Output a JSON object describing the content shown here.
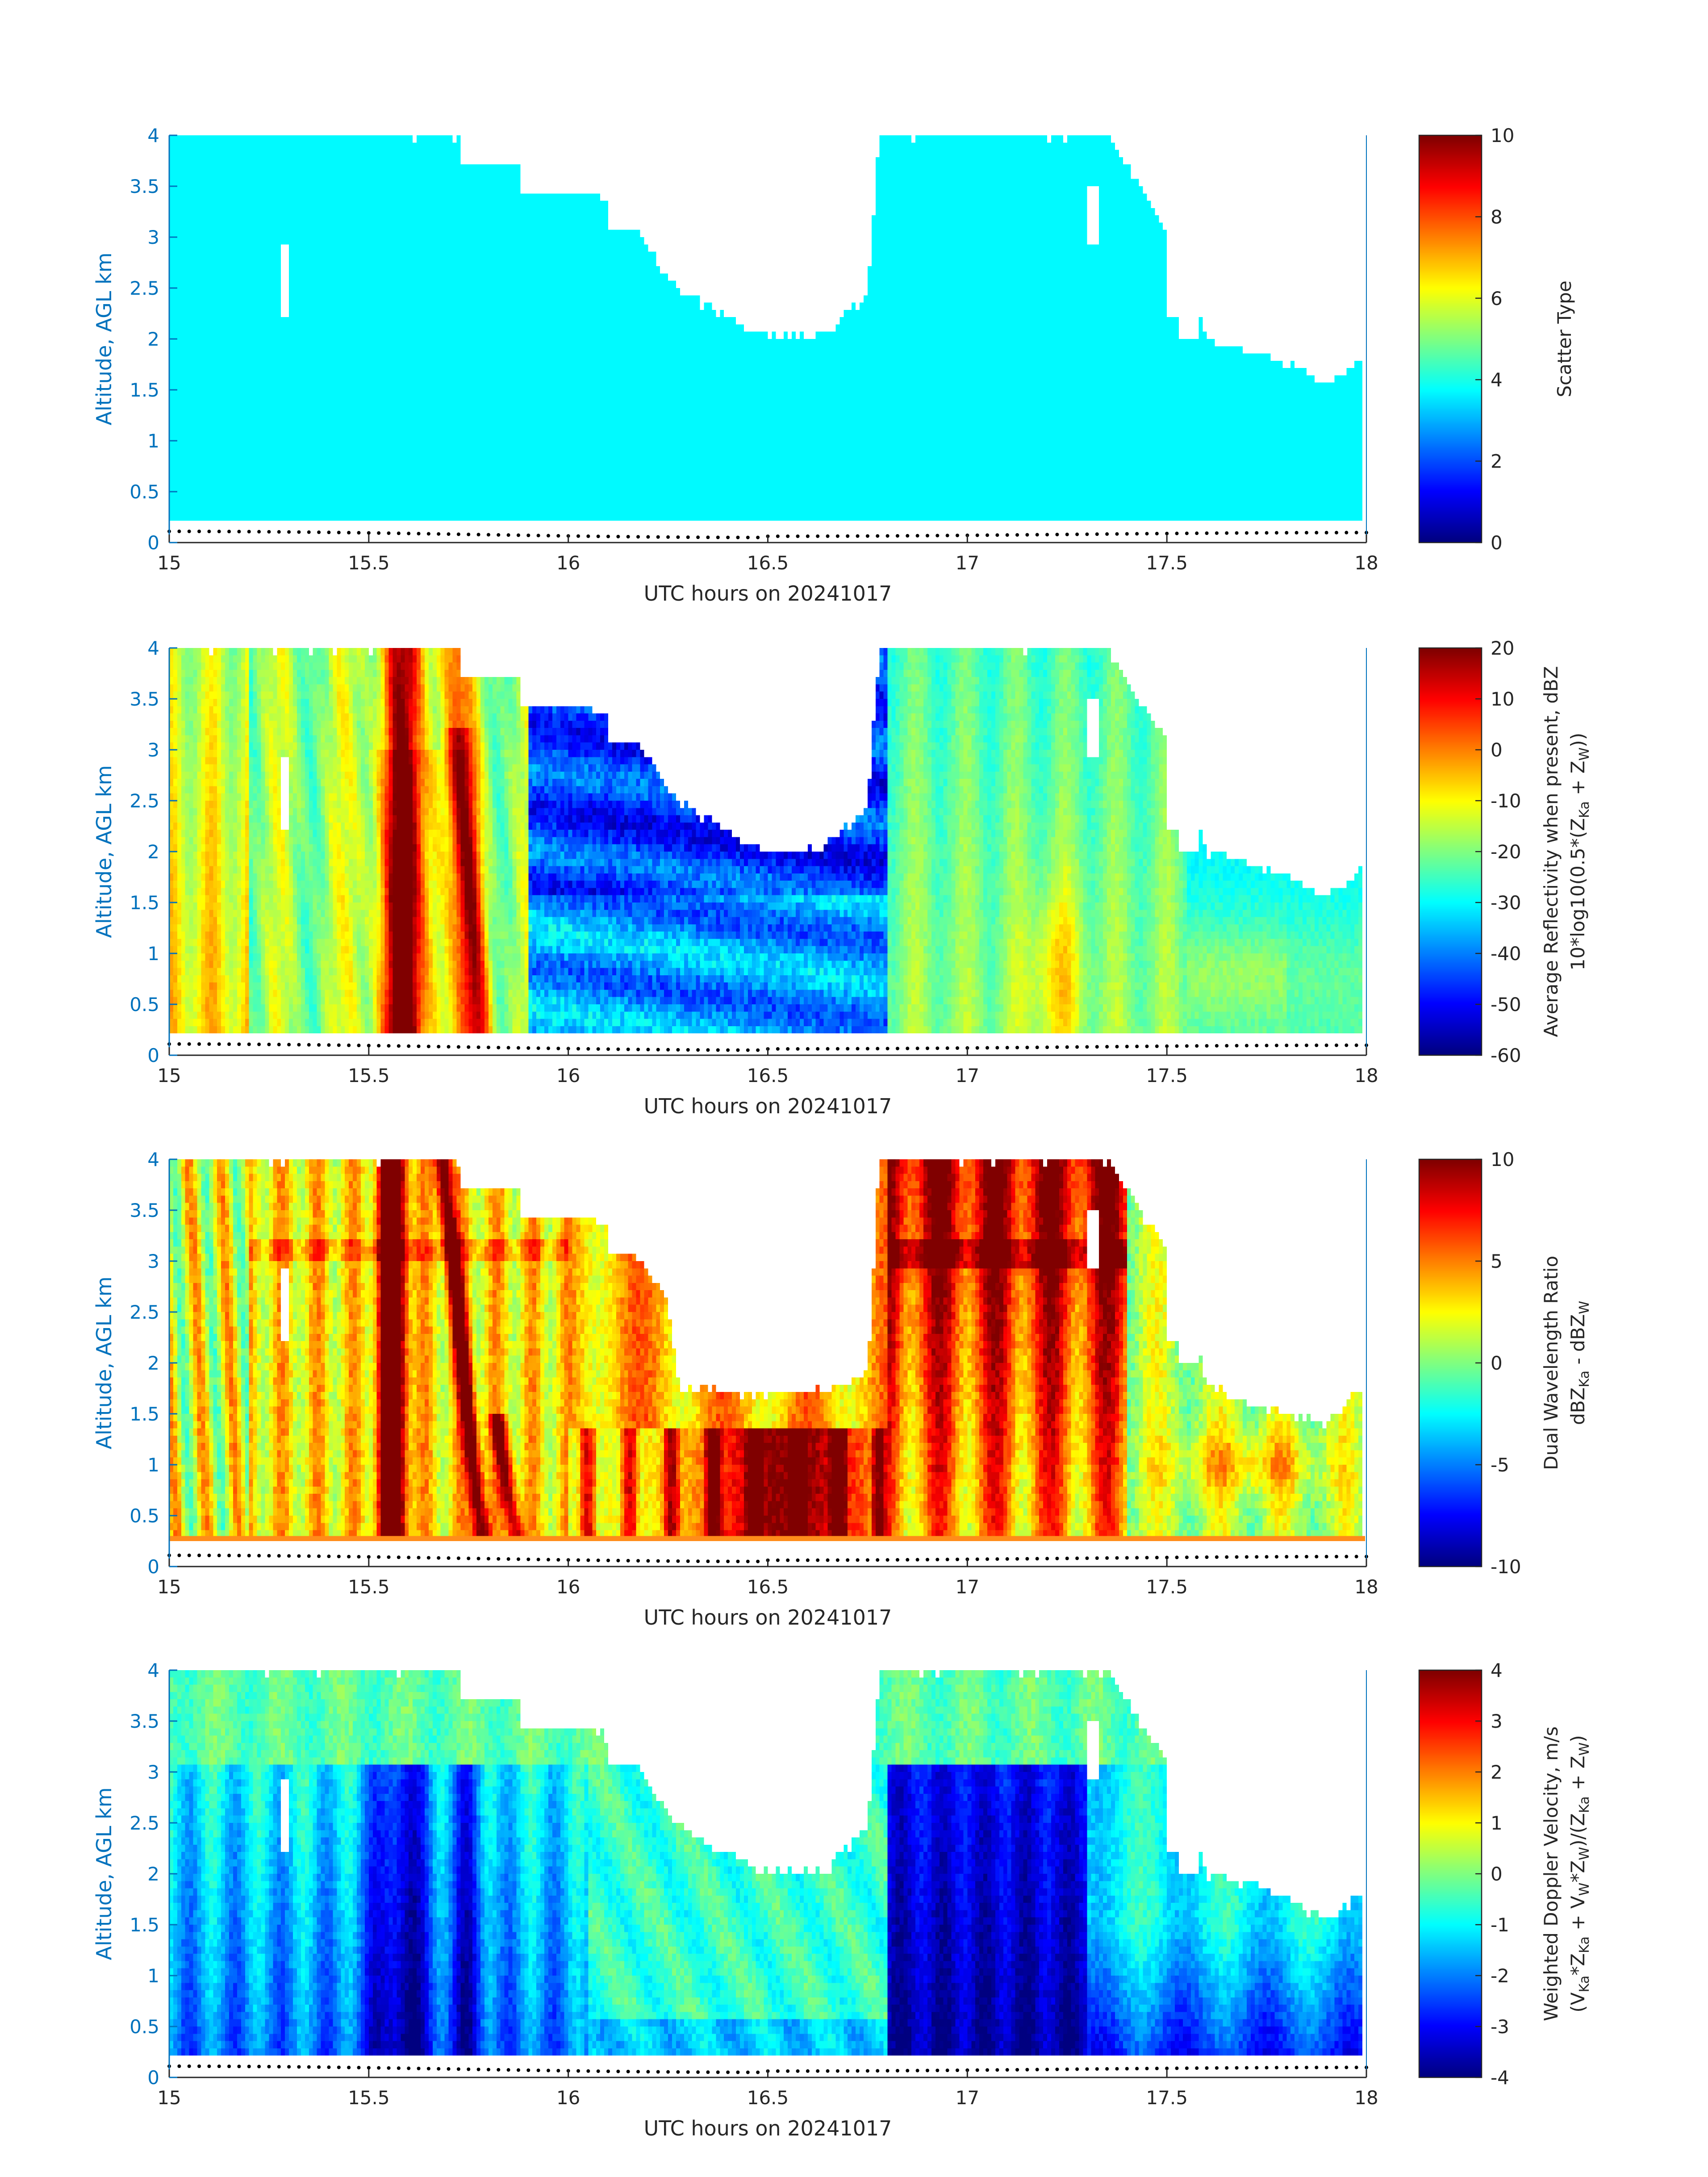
{
  "figure": {
    "xlabel": "UTC hours on 20241017",
    "ylabel": "Altitude, AGL km"
  },
  "chart_data": [
    {
      "type": "heatmap",
      "title": "",
      "xlabel": "UTC hours on 20241017",
      "ylabel": "Altitude, AGL km",
      "xlim": [
        15,
        18
      ],
      "ylim": [
        0,
        4
      ],
      "xticks": [
        15,
        15.5,
        16,
        16.5,
        17,
        17.5,
        18
      ],
      "xtick_labels": [
        "15",
        "15.5",
        "16",
        "16.5",
        "17",
        "17.5",
        "18"
      ],
      "yticks": [
        0,
        0.5,
        1,
        1.5,
        2,
        2.5,
        3,
        3.5,
        4
      ],
      "ytick_labels": [
        "0",
        "0.5",
        "1",
        "1.5",
        "2",
        "2.5",
        "3",
        "3.5",
        "4"
      ],
      "colorbar": {
        "label_lines": [
          "Scatter Type"
        ],
        "range": [
          0,
          10
        ],
        "ticks": [
          0,
          2,
          4,
          6,
          8,
          10
        ],
        "tick_labels": [
          "0",
          "2",
          "4",
          "6",
          "8",
          "10"
        ],
        "colormap": "jet"
      },
      "field": "scatter",
      "data_bottom_km": 0.2,
      "cloud_top_profile": [
        [
          15,
          4
        ],
        [
          15.2,
          4
        ],
        [
          15.5,
          4
        ],
        [
          15.7,
          4
        ],
        [
          15.85,
          3.8
        ],
        [
          15.95,
          3.65
        ],
        [
          16.05,
          3.45
        ],
        [
          16.15,
          3.2
        ],
        [
          16.25,
          2.6
        ],
        [
          16.35,
          2.3
        ],
        [
          16.5,
          2.0
        ],
        [
          16.65,
          2.05
        ],
        [
          16.75,
          2.45
        ],
        [
          16.78,
          4
        ],
        [
          17.35,
          4
        ],
        [
          17.45,
          3.4
        ],
        [
          17.55,
          2.8
        ],
        [
          17.6,
          2.0
        ],
        [
          17.7,
          1.9
        ],
        [
          17.8,
          1.75
        ],
        [
          17.9,
          1.55
        ],
        [
          18.0,
          1.85
        ]
      ],
      "gaps": [
        [
          15.28,
          15.3,
          2.2,
          2.9
        ],
        [
          15.73,
          16.05,
          3.7,
          4.0
        ],
        [
          15.88,
          16.05,
          3.4,
          4.0
        ],
        [
          16.1,
          16.3,
          3.1,
          3.7
        ],
        [
          17.3,
          17.33,
          2.9,
          3.5
        ],
        [
          17.5,
          17.7,
          2.2,
          3.9
        ],
        [
          17.53,
          17.58,
          2.0,
          2.8
        ]
      ]
    },
    {
      "type": "heatmap",
      "title": "",
      "xlabel": "UTC hours on 20241017",
      "ylabel": "Altitude, AGL km",
      "xlim": [
        15,
        18
      ],
      "ylim": [
        0,
        4
      ],
      "xticks": [
        15,
        15.5,
        16,
        16.5,
        17,
        17.5,
        18
      ],
      "xtick_labels": [
        "15",
        "15.5",
        "16",
        "16.5",
        "17",
        "17.5",
        "18"
      ],
      "yticks": [
        0,
        0.5,
        1,
        1.5,
        2,
        2.5,
        3,
        3.5,
        4
      ],
      "ytick_labels": [
        "0",
        "0.5",
        "1",
        "1.5",
        "2",
        "2.5",
        "3",
        "3.5",
        "4"
      ],
      "colorbar": {
        "label_lines": [
          "Average Reflectivity when present, dBZ",
          "10*log10(0.5*(Z_Ka + Z_W))"
        ],
        "range": [
          -60,
          20
        ],
        "ticks": [
          -60,
          -50,
          -40,
          -30,
          -20,
          -10,
          0,
          10,
          20
        ],
        "tick_labels": [
          "-60",
          "-50",
          "-40",
          "-30",
          "-20",
          "-10",
          "0",
          "10",
          "20"
        ],
        "colormap": "jet"
      },
      "field": "reflectivity",
      "data_bottom_km": 0.2,
      "cloud_top_profile": [
        [
          15,
          4
        ],
        [
          15.2,
          4
        ],
        [
          15.5,
          4
        ],
        [
          15.7,
          4
        ],
        [
          15.85,
          3.8
        ],
        [
          15.95,
          3.65
        ],
        [
          16.05,
          3.45
        ],
        [
          16.15,
          3.2
        ],
        [
          16.25,
          2.6
        ],
        [
          16.35,
          2.3
        ],
        [
          16.5,
          2.0
        ],
        [
          16.65,
          2.05
        ],
        [
          16.75,
          2.45
        ],
        [
          16.78,
          4
        ],
        [
          17.35,
          4
        ],
        [
          17.45,
          3.4
        ],
        [
          17.55,
          2.8
        ],
        [
          17.6,
          2.0
        ],
        [
          17.7,
          1.9
        ],
        [
          17.8,
          1.75
        ],
        [
          17.9,
          1.55
        ],
        [
          18.0,
          1.85
        ]
      ],
      "gaps": [
        [
          15.28,
          15.3,
          2.2,
          2.9
        ],
        [
          15.73,
          16.05,
          3.7,
          4.0
        ],
        [
          15.88,
          16.05,
          3.4,
          4.0
        ],
        [
          16.1,
          16.3,
          3.1,
          3.7
        ],
        [
          17.3,
          17.33,
          2.9,
          3.5
        ],
        [
          17.5,
          17.7,
          2.2,
          3.9
        ],
        [
          17.53,
          17.58,
          2.0,
          2.8
        ]
      ]
    },
    {
      "type": "heatmap",
      "title": "",
      "xlabel": "UTC hours on 20241017",
      "ylabel": "Altitude, AGL km",
      "xlim": [
        15,
        18
      ],
      "ylim": [
        0,
        4
      ],
      "xticks": [
        15,
        15.5,
        16,
        16.5,
        17,
        17.5,
        18
      ],
      "xtick_labels": [
        "15",
        "15.5",
        "16",
        "16.5",
        "17",
        "17.5",
        "18"
      ],
      "yticks": [
        0,
        0.5,
        1,
        1.5,
        2,
        2.5,
        3,
        3.5,
        4
      ],
      "ytick_labels": [
        "0",
        "0.5",
        "1",
        "1.5",
        "2",
        "2.5",
        "3",
        "3.5",
        "4"
      ],
      "colorbar": {
        "label_lines": [
          "Dual Wavelength Ratio",
          "dBZ_Ka - dBZ_W"
        ],
        "range": [
          -10,
          10
        ],
        "ticks": [
          -10,
          -5,
          0,
          5,
          10
        ],
        "tick_labels": [
          "-10",
          "-5",
          "0",
          "5",
          "10"
        ],
        "colormap": "jet"
      },
      "field": "dwr",
      "data_bottom_km": 0.27,
      "cloud_top_profile": [
        [
          15,
          4
        ],
        [
          15.2,
          4
        ],
        [
          15.5,
          4
        ],
        [
          15.7,
          4
        ],
        [
          15.85,
          3.8
        ],
        [
          15.95,
          3.65
        ],
        [
          16.05,
          3.45
        ],
        [
          16.15,
          3.2
        ],
        [
          16.25,
          2.6
        ],
        [
          16.28,
          1.75
        ],
        [
          16.5,
          1.7
        ],
        [
          16.65,
          1.75
        ],
        [
          16.75,
          1.9
        ],
        [
          16.78,
          4
        ],
        [
          17.35,
          4
        ],
        [
          17.45,
          3.4
        ],
        [
          17.55,
          2.8
        ],
        [
          17.6,
          1.8
        ],
        [
          17.7,
          1.6
        ],
        [
          17.8,
          1.5
        ],
        [
          17.9,
          1.4
        ],
        [
          18.0,
          1.8
        ]
      ],
      "gaps": [
        [
          15.28,
          15.3,
          2.2,
          2.9
        ],
        [
          15.73,
          16.05,
          3.7,
          4.0
        ],
        [
          15.88,
          16.05,
          3.4,
          4.0
        ],
        [
          16.1,
          16.3,
          3.1,
          3.7
        ],
        [
          17.3,
          17.33,
          2.9,
          3.5
        ],
        [
          17.5,
          17.7,
          2.2,
          3.9
        ],
        [
          17.53,
          17.58,
          2.0,
          2.8
        ]
      ]
    },
    {
      "type": "heatmap",
      "title": "",
      "xlabel": "UTC hours on 20241017",
      "ylabel": "Altitude, AGL km",
      "xlim": [
        15,
        18
      ],
      "ylim": [
        0,
        4
      ],
      "xticks": [
        15,
        15.5,
        16,
        16.5,
        17,
        17.5,
        18
      ],
      "xtick_labels": [
        "15",
        "15.5",
        "16",
        "16.5",
        "17",
        "17.5",
        "18"
      ],
      "yticks": [
        0,
        0.5,
        1,
        1.5,
        2,
        2.5,
        3,
        3.5,
        4
      ],
      "ytick_labels": [
        "0",
        "0.5",
        "1",
        "1.5",
        "2",
        "2.5",
        "3",
        "3.5",
        "4"
      ],
      "colorbar": {
        "label_lines": [
          "Weighted Doppler Velocity, m/s",
          "(V_Ka*Z_Ka + V_W*Z_W)/(Z_Ka + Z_W)"
        ],
        "range": [
          -4,
          4
        ],
        "ticks": [
          -4,
          -3,
          -2,
          -1,
          0,
          1,
          2,
          3,
          4
        ],
        "tick_labels": [
          "-4",
          "-3",
          "-2",
          "-1",
          "0",
          "1",
          "2",
          "3",
          "4"
        ],
        "colormap": "jet"
      },
      "field": "velocity",
      "data_bottom_km": 0.2,
      "cloud_top_profile": [
        [
          15,
          4
        ],
        [
          15.2,
          4
        ],
        [
          15.5,
          4
        ],
        [
          15.7,
          4
        ],
        [
          15.85,
          3.8
        ],
        [
          15.95,
          3.65
        ],
        [
          16.05,
          3.45
        ],
        [
          16.15,
          3.2
        ],
        [
          16.25,
          2.6
        ],
        [
          16.35,
          2.3
        ],
        [
          16.5,
          2.0
        ],
        [
          16.65,
          2.05
        ],
        [
          16.75,
          2.45
        ],
        [
          16.78,
          4
        ],
        [
          17.35,
          4
        ],
        [
          17.45,
          3.4
        ],
        [
          17.55,
          2.8
        ],
        [
          17.6,
          2.0
        ],
        [
          17.7,
          1.9
        ],
        [
          17.8,
          1.75
        ],
        [
          17.9,
          1.55
        ],
        [
          18.0,
          1.85
        ]
      ],
      "gaps": [
        [
          15.28,
          15.3,
          2.2,
          2.9
        ],
        [
          15.73,
          16.05,
          3.7,
          4.0
        ],
        [
          15.88,
          16.05,
          3.4,
          4.0
        ],
        [
          16.1,
          16.3,
          3.1,
          3.7
        ],
        [
          17.3,
          17.33,
          2.9,
          3.5
        ],
        [
          17.5,
          17.7,
          2.2,
          3.9
        ],
        [
          17.53,
          17.58,
          2.0,
          2.8
        ]
      ]
    }
  ],
  "colors": {
    "axis_blue": "#0072bd",
    "text_dark": "#262626",
    "ground_dots": "#000000"
  }
}
